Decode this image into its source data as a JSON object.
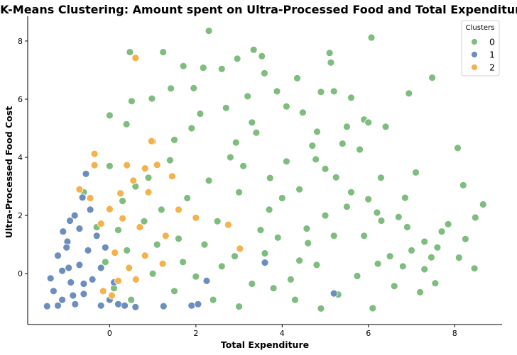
{
  "chart_data": {
    "type": "scatter",
    "title": "K-Means Clustering: Amount spent on Ultra-Processed Food and Total Expenditure",
    "xlabel": "Total Expenditure",
    "ylabel": "Ultra-Processed Food Cost",
    "xlim": [
      -1.9,
      9.1
    ],
    "ylim": [
      -1.75,
      8.85
    ],
    "xticks": [
      0,
      2,
      4,
      6,
      8
    ],
    "yticks": [
      0,
      2,
      4,
      6,
      8
    ],
    "grid": false,
    "legend": {
      "title": "Clusters",
      "placement": "top-right"
    },
    "series": [
      {
        "name": "0",
        "color": "#7ebd7e",
        "points": [
          [
            2.3,
            8.35
          ],
          [
            6.07,
            8.12
          ],
          [
            0.47,
            7.62
          ],
          [
            1.24,
            7.62
          ],
          [
            3.34,
            7.7
          ],
          [
            3.53,
            7.48
          ],
          [
            5.1,
            7.59
          ],
          [
            5.13,
            7.26
          ],
          [
            7.48,
            6.74
          ],
          [
            6.94,
            6.2
          ],
          [
            8.07,
            4.32
          ],
          [
            8.2,
            3.04
          ],
          [
            8.66,
            2.38
          ],
          [
            8.48,
            1.93
          ],
          [
            8.25,
            1.19
          ],
          [
            8.1,
            0.55
          ],
          [
            8.46,
            0.18
          ],
          [
            7.85,
            1.7
          ],
          [
            7.6,
            0.9
          ],
          [
            7.46,
            0.56
          ],
          [
            7.3,
            0.15
          ],
          [
            7.55,
            -0.33
          ],
          [
            7.2,
            -0.64
          ],
          [
            6.8,
            0.25
          ],
          [
            6.6,
            -0.43
          ],
          [
            6.22,
            0.34
          ],
          [
            6.1,
            -1.19
          ],
          [
            6.3,
            1.82
          ],
          [
            6.7,
            1.95
          ],
          [
            6.0,
            2.56
          ],
          [
            6.29,
            3.3
          ],
          [
            5.6,
            6.05
          ],
          [
            5.9,
            5.3
          ],
          [
            5.2,
            6.27
          ],
          [
            2.17,
            7.08
          ],
          [
            1.71,
            7.14
          ],
          [
            2.6,
            7.04
          ],
          [
            2.96,
            7.39
          ],
          [
            3.59,
            6.89
          ],
          [
            4.35,
            6.72
          ],
          [
            1.95,
            6.38
          ],
          [
            1.42,
            6.37
          ],
          [
            0.98,
            6.02
          ],
          [
            0.51,
            5.93
          ],
          [
            0.39,
            5.14
          ],
          [
            3.88,
            6.27
          ],
          [
            4.81,
            4.88
          ],
          [
            4.48,
            5.54
          ],
          [
            0.0,
            5.44
          ],
          [
            2.93,
            4.51
          ],
          [
            3.4,
            4.85
          ],
          [
            4.1,
            3.86
          ],
          [
            3.72,
            3.29
          ],
          [
            4.78,
            3.93
          ],
          [
            5.25,
            3.31
          ],
          [
            5.5,
            2.3
          ],
          [
            5.9,
            1.3
          ],
          [
            5.0,
            2.0
          ],
          [
            4.6,
            1.05
          ],
          [
            4.9,
            -1.2
          ],
          [
            5.3,
            -0.72
          ],
          [
            5.74,
            -0.08
          ],
          [
            6.5,
            0.6
          ],
          [
            7.0,
            0.8
          ],
          [
            7.7,
            1.45
          ],
          [
            6.4,
            5.05
          ],
          [
            5.8,
            4.27
          ],
          [
            7.1,
            3.48
          ],
          [
            6.85,
            2.61
          ],
          [
            5.4,
            4.47
          ],
          [
            4.0,
            2.6
          ],
          [
            4.2,
            -0.2
          ],
          [
            4.4,
            0.45
          ],
          [
            4.57,
            1.55
          ],
          [
            3.9,
            1.24
          ],
          [
            3.6,
            0.7
          ],
          [
            3.3,
            -0.35
          ],
          [
            3.0,
            -1.13
          ],
          [
            2.6,
            0.25
          ],
          [
            2.2,
            1.0
          ],
          [
            1.8,
            2.6
          ],
          [
            1.4,
            3.9
          ],
          [
            1.0,
            4.55
          ],
          [
            0.6,
            3.0
          ],
          [
            0.2,
            1.5
          ],
          [
            -0.1,
            0.4
          ],
          [
            0.1,
            -0.5
          ],
          [
            0.5,
            -0.9
          ],
          [
            1.0,
            0.0
          ],
          [
            1.5,
            -0.6
          ],
          [
            2.0,
            -0.1
          ],
          [
            2.5,
            1.8
          ],
          [
            3.0,
            2.8
          ],
          [
            3.5,
            1.5
          ],
          [
            2.8,
            4.0
          ],
          [
            2.3,
            3.2
          ],
          [
            1.6,
            1.2
          ],
          [
            1.2,
            2.2
          ],
          [
            0.8,
            1.8
          ],
          [
            0.4,
            0.8
          ],
          [
            -0.3,
            1.6
          ],
          [
            -0.6,
            2.8
          ],
          [
            0.0,
            3.7
          ],
          [
            1.9,
            5.0
          ],
          [
            2.7,
            5.7
          ],
          [
            3.2,
            6.1
          ],
          [
            4.1,
            5.75
          ],
          [
            4.7,
            4.4
          ],
          [
            5.6,
            2.8
          ],
          [
            6.2,
            2.1
          ],
          [
            6.9,
            1.6
          ],
          [
            7.3,
            1.1
          ],
          [
            5.2,
            1.3
          ],
          [
            4.8,
            0.3
          ],
          [
            4.3,
            -0.9
          ],
          [
            3.8,
            -0.5
          ],
          [
            2.9,
            0.6
          ],
          [
            2.4,
            -0.9
          ],
          [
            1.7,
            0.4
          ],
          [
            1.1,
            1.0
          ],
          [
            0.3,
            2.5
          ],
          [
            0.9,
            3.3
          ],
          [
            1.5,
            4.6
          ],
          [
            2.1,
            5.5
          ],
          [
            3.1,
            3.7
          ],
          [
            3.7,
            2.2
          ],
          [
            4.4,
            2.9
          ],
          [
            5.0,
            3.6
          ],
          [
            5.5,
            5.05
          ],
          [
            6.0,
            5.2
          ],
          [
            4.9,
            6.25
          ],
          [
            3.3,
            5.2
          ]
        ]
      },
      {
        "name": "1",
        "color": "#6c8ebf",
        "points": [
          [
            -0.55,
            3.43
          ],
          [
            -0.63,
            2.62
          ],
          [
            -0.81,
            2.0
          ],
          [
            -0.92,
            1.82
          ],
          [
            -1.08,
            1.45
          ],
          [
            -0.98,
            1.1
          ],
          [
            -1.2,
            0.62
          ],
          [
            -1.37,
            -0.16
          ],
          [
            -1.2,
            -1.1
          ],
          [
            -1.45,
            -1.12
          ],
          [
            -1.1,
            -0.9
          ],
          [
            -0.9,
            -0.3
          ],
          [
            -0.7,
            0.3
          ],
          [
            -0.5,
            0.8
          ],
          [
            -0.3,
            1.3
          ],
          [
            -0.8,
            -1.05
          ],
          [
            -0.6,
            -0.7
          ],
          [
            -0.4,
            -0.2
          ],
          [
            -0.2,
            0.2
          ],
          [
            0.0,
            -0.9
          ],
          [
            0.2,
            -1.05
          ],
          [
            0.6,
            -1.15
          ],
          [
            1.25,
            -1.12
          ],
          [
            1.9,
            -1.1
          ],
          [
            2.25,
            -0.25
          ],
          [
            2.05,
            -1.05
          ],
          [
            5.2,
            -0.68
          ],
          [
            3.6,
            0.38
          ],
          [
            -1.0,
            0.9
          ],
          [
            -0.45,
            2.2
          ],
          [
            -0.2,
            -1.1
          ],
          [
            0.35,
            -1.1
          ],
          [
            -1.3,
            -0.6
          ],
          [
            -0.95,
            0.2
          ],
          [
            -0.7,
            1.55
          ],
          [
            -0.1,
            0.9
          ],
          [
            0.1,
            -0.3
          ],
          [
            -1.1,
            0.1
          ],
          [
            -0.6,
            -0.35
          ],
          [
            -0.85,
            -0.75
          ]
        ]
      },
      {
        "name": "2",
        "color": "#f3b24c",
        "points": [
          [
            0.6,
            7.42
          ],
          [
            -0.35,
            4.12
          ],
          [
            -0.35,
            3.73
          ],
          [
            0.4,
            3.73
          ],
          [
            0.97,
            4.56
          ],
          [
            1.1,
            3.74
          ],
          [
            0.82,
            3.62
          ],
          [
            0.55,
            3.2
          ],
          [
            0.25,
            2.76
          ],
          [
            0.0,
            2.22
          ],
          [
            -0.2,
            1.72
          ],
          [
            0.12,
            0.72
          ],
          [
            0.82,
            0.62
          ],
          [
            1.23,
            0.34
          ],
          [
            0.61,
            -0.2
          ],
          [
            0.05,
            -0.75
          ],
          [
            2.0,
            1.92
          ],
          [
            2.75,
            1.68
          ],
          [
            3.02,
            0.86
          ],
          [
            1.6,
            2.2
          ],
          [
            1.3,
            1.3
          ],
          [
            0.9,
            2.8
          ],
          [
            0.3,
            1.9
          ],
          [
            -0.45,
            2.6
          ],
          [
            -0.7,
            2.9
          ],
          [
            0.45,
            0.2
          ],
          [
            0.2,
            -0.25
          ],
          [
            -0.15,
            -0.6
          ],
          [
            0.7,
            1.6
          ],
          [
            1.45,
            3.35
          ]
        ]
      }
    ],
    "cluster_counts_note_free": true
  }
}
